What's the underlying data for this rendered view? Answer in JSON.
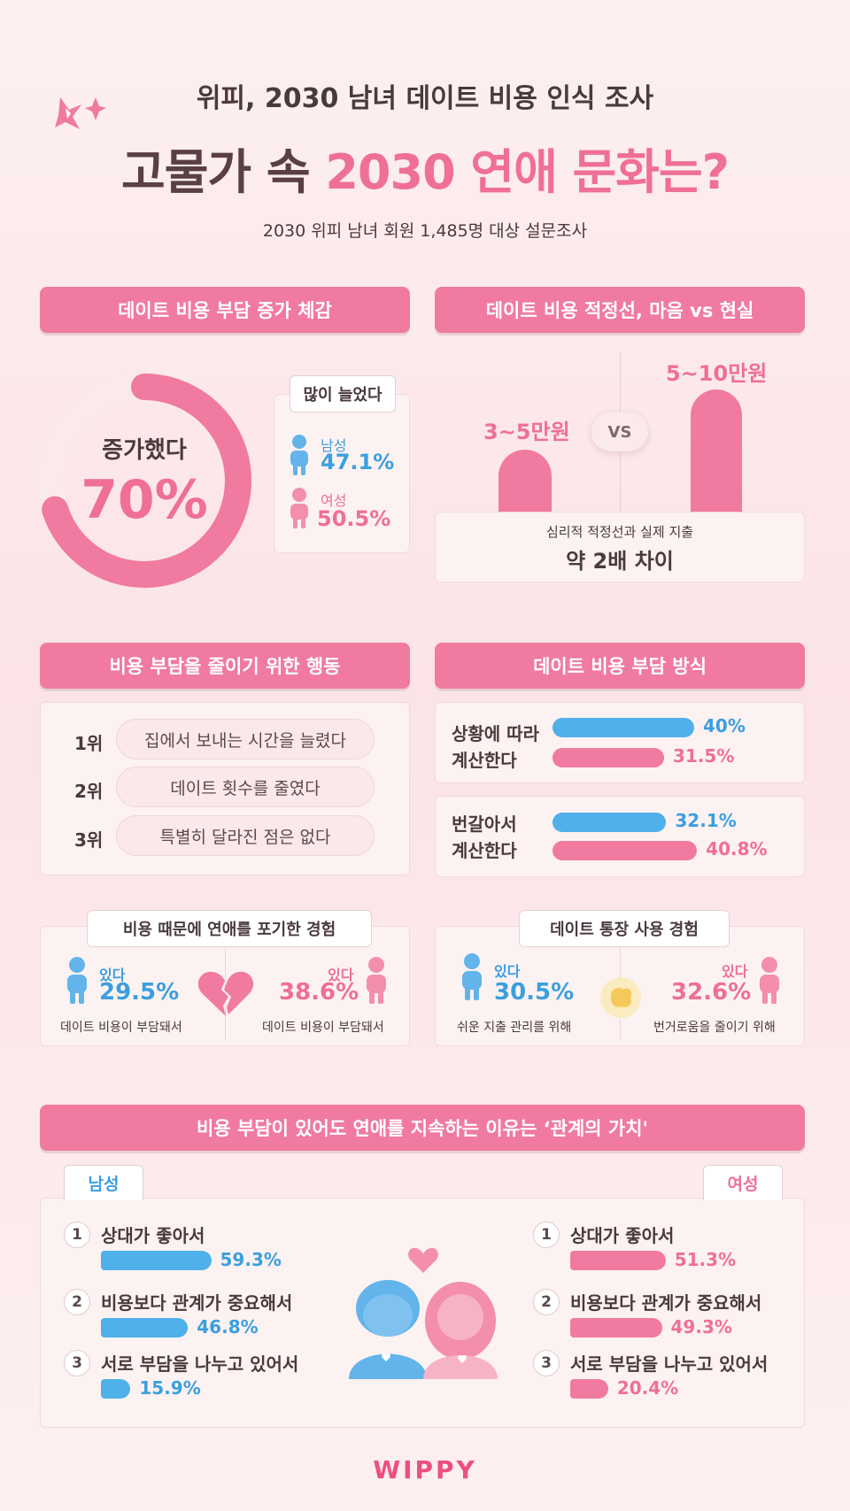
{
  "header": {
    "subtitle": "위피, 2030 남녀 데이트 비용 인식 조사",
    "title_part1": "고물가 속 ",
    "title_part2": "2030 연애 문화는?",
    "survey_note": "2030 위피 남녀 회원 1,485명 대상 설문조사"
  },
  "section1": {
    "heading": "데이트 비용 부담 증가 체감",
    "donut_label": "증가했다",
    "donut_value": "70%",
    "donut_fraction": 0.7,
    "box_title": "많이 늘었다",
    "male_label": "남성",
    "male_value": "47.1%",
    "female_label": "여성",
    "female_value": "50.5%"
  },
  "section2": {
    "heading": "데이트 비용 적정선, 마음 vs 현실",
    "left_label": "3~5만원",
    "right_label": "5~10만원",
    "vs": "VS",
    "caption_small": "심리적 적정선과 실제 지출",
    "caption_big": "약 2배 차이"
  },
  "section3": {
    "heading": "비용 부담을 줄이기 위한 행동",
    "items": [
      {
        "rank": "1위",
        "text": "집에서 보내는 시간을 늘렸다"
      },
      {
        "rank": "2위",
        "text": "데이트 횟수를 줄였다"
      },
      {
        "rank": "3위",
        "text": "특별히 달라진 점은 없다"
      }
    ]
  },
  "section4": {
    "heading": "데이트 비용 부담 방식",
    "groups": [
      {
        "label_line1": "상황에 따라",
        "label_line2": "계산한다",
        "male": 40,
        "male_text": "40%",
        "female": 31.5,
        "female_text": "31.5%"
      },
      {
        "label_line1": "번갈아서",
        "label_line2": "계산한다",
        "male": 32.1,
        "male_text": "32.1%",
        "female": 40.8,
        "female_text": "40.8%"
      }
    ]
  },
  "section5": {
    "heading": "비용 때문에 연애를 포기한 경험",
    "male_label": "있다",
    "male_value": "29.5%",
    "male_reason": "데이트 비용이 부담돼서",
    "female_label": "있다",
    "female_value": "38.6%",
    "female_reason": "데이트 비용이 부담돼서"
  },
  "section6": {
    "heading": "데이트 통장 사용 경험",
    "male_label": "있다",
    "male_value": "30.5%",
    "male_reason": "쉬운 지출 관리를 위해",
    "female_label": "있다",
    "female_value": "32.6%",
    "female_reason": "번거로움을 줄이기 위해"
  },
  "section7": {
    "heading": "비용 부담이 있어도 연애를 지속하는 이유는 ‘관계의 가치'",
    "male_tab": "남성",
    "female_tab": "여성",
    "male": [
      {
        "num": "1",
        "text": "상대가 좋아서",
        "value": 59.3,
        "value_text": "59.3%"
      },
      {
        "num": "2",
        "text": "비용보다 관계가 중요해서",
        "value": 46.8,
        "value_text": "46.8%"
      },
      {
        "num": "3",
        "text": "서로 부담을 나누고 있어서",
        "value": 15.9,
        "value_text": "15.9%"
      }
    ],
    "female": [
      {
        "num": "1",
        "text": "상대가 좋아서",
        "value": 51.3,
        "value_text": "51.3%"
      },
      {
        "num": "2",
        "text": "비용보다 관계가 중요해서",
        "value": 49.3,
        "value_text": "49.3%"
      },
      {
        "num": "3",
        "text": "서로 부담을 나누고 있어서",
        "value": 20.4,
        "value_text": "20.4%"
      }
    ]
  },
  "footer": {
    "brand": "WIPPY"
  },
  "colors": {
    "pink": "#f07aa0",
    "blue": "#4fb0ea",
    "dark": "#4a3a3c"
  },
  "chart_data": [
    {
      "type": "pie",
      "title": "데이트 비용 부담 증가 체감",
      "categories": [
        "증가했다"
      ],
      "values": [
        70
      ]
    },
    {
      "type": "bar",
      "title": "많이 늘었다",
      "categories": [
        "남성",
        "여성"
      ],
      "values": [
        47.1,
        50.5
      ]
    },
    {
      "type": "bar",
      "title": "데이트 비용 부담 방식",
      "categories": [
        "상황에 따라 계산한다",
        "번갈아서 계산한다"
      ],
      "series": [
        {
          "values": [
            40,
            32.1
          ]
        },
        {
          "values": [
            31.5,
            40.8
          ]
        }
      ]
    },
    {
      "type": "bar",
      "title": "비용 때문에 연애를 포기한 경험",
      "categories": [
        "남성",
        "여성"
      ],
      "values": [
        29.5,
        38.6
      ]
    },
    {
      "type": "bar",
      "title": "데이트 통장 사용 경험",
      "categories": [
        "남성",
        "여성"
      ],
      "values": [
        30.5,
        32.6
      ]
    },
    {
      "type": "bar",
      "title": "비용 부담이 있어도 연애를 지속하는 이유는 ‘관계의 가치'",
      "categories": [
        "상대가 좋아서",
        "비용보다 관계가 중요해서",
        "서로 부담을 나누고 있어서"
      ],
      "series": [
        {
          "name": "남성",
          "values": [
            59.3,
            46.8,
            15.9
          ]
        },
        {
          "name": "여성",
          "values": [
            51.3,
            49.3,
            20.4
          ]
        }
      ]
    }
  ]
}
